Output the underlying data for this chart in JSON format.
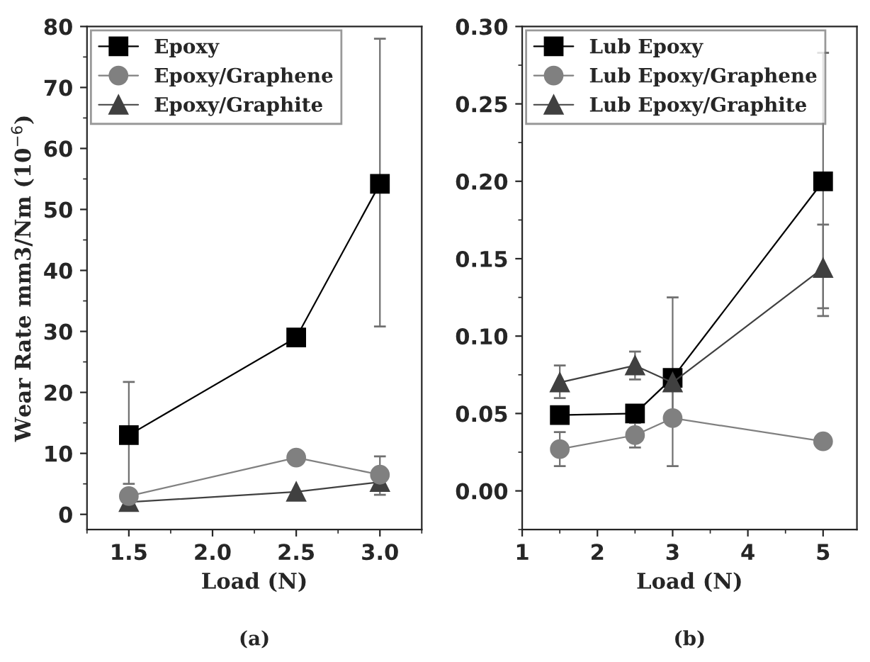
{
  "chart_data": [
    {
      "type": "line",
      "xlabel": "Load (N)",
      "ylabel": "Wear Rate mm3/Nm (10$^{−6}$)",
      "annotations": [
        "(a)"
      ],
      "xlim": [
        1.25,
        3.25
      ],
      "xticks": [
        {
          "value": 1.5,
          "label": "1.5"
        },
        {
          "value": 2.0,
          "label": "2.0"
        },
        {
          "value": 2.5,
          "label": "2.5"
        },
        {
          "value": 3.0,
          "label": "3.0"
        }
      ],
      "ylim": [
        -2.5,
        80
      ],
      "yticks": [
        0,
        10,
        20,
        30,
        40,
        50,
        60,
        70,
        80
      ],
      "x": [
        1.5,
        2.5,
        3.0
      ],
      "legend": "top left",
      "grid": false,
      "series": [
        {
          "name": "Epoxy",
          "color": "#000000",
          "marker": "square",
          "values": [
            13,
            29,
            54.2
          ],
          "errors": [
            [
              5,
              21.7
            ],
            null,
            [
              30.8,
              78
            ]
          ]
        },
        {
          "name": "Epoxy/Graphene",
          "color": "#808080",
          "marker": "circle",
          "values": [
            3.0,
            9.3,
            6.5
          ],
          "errors": [
            null,
            null,
            [
              4,
              9.5
            ]
          ]
        },
        {
          "name": "Epoxy/Graphite",
          "color": "#404040",
          "marker": "triangle",
          "values": [
            2.0,
            3.7,
            5.3
          ],
          "errors": [
            null,
            null,
            [
              3.2,
              7.5
            ]
          ]
        }
      ]
    },
    {
      "type": "line",
      "xlabel": "Load (N)",
      "annotations": [
        "(b)"
      ],
      "xlim": [
        1,
        5.45
      ],
      "xticks": [
        1,
        2,
        3,
        4,
        5
      ],
      "ylim": [
        -0.025,
        0.3
      ],
      "yticks": [
        {
          "value": 0.0,
          "label": "0.00"
        },
        {
          "value": 0.05,
          "label": "0.05"
        },
        {
          "value": 0.1,
          "label": "0.10"
        },
        {
          "value": 0.15,
          "label": "0.15"
        },
        {
          "value": 0.2,
          "label": "0.20"
        },
        {
          "value": 0.25,
          "label": "0.25"
        },
        {
          "value": 0.3,
          "label": "0.30"
        }
      ],
      "x": [
        1.5,
        2.5,
        3,
        5
      ],
      "legend": "top left",
      "grid": false,
      "series": [
        {
          "name": "Lub Epoxy",
          "color": "#000000",
          "marker": "square",
          "values": [
            0.049,
            0.05,
            0.073,
            0.2
          ],
          "errors": [
            null,
            null,
            [
              0.05,
              0.125
            ],
            [
              0.118,
              0.283
            ]
          ]
        },
        {
          "name": "Lub Epoxy/Graphene",
          "color": "#808080",
          "marker": "circle",
          "values": [
            0.027,
            0.036,
            0.047,
            0.032
          ],
          "errors": [
            [
              0.016,
              0.038
            ],
            [
              0.028,
              0.044
            ],
            [
              0.016,
              0.077
            ],
            null
          ]
        },
        {
          "name": "Lub Epoxy/Graphite",
          "color": "#404040",
          "marker": "triangle",
          "values": [
            0.07,
            0.081,
            0.07,
            0.144
          ],
          "errors": [
            [
              0.06,
              0.081
            ],
            [
              0.072,
              0.09
            ],
            null,
            [
              0.113,
              0.172
            ]
          ]
        }
      ]
    }
  ]
}
